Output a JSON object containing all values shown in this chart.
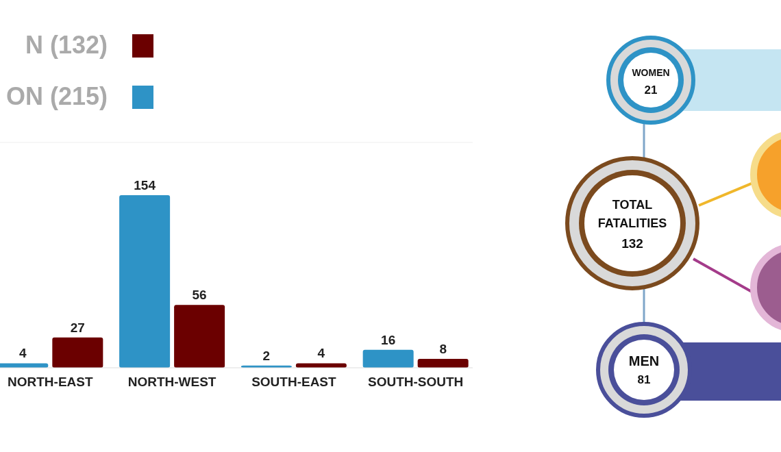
{
  "chart_data": [
    {
      "type": "bar",
      "categories": [
        "NORTH-EAST",
        "NORTH-WEST",
        "SOUTH-EAST",
        "SOUTH-SOUTH"
      ],
      "series": [
        {
          "name": "ON (215)",
          "color": "#2e93c6",
          "values": [
            4,
            154,
            2,
            16
          ]
        },
        {
          "name": "N (132)",
          "color": "#6b0000",
          "values": [
            27,
            56,
            4,
            8
          ]
        }
      ],
      "data_labels": true,
      "legend": "top left"
    },
    {
      "type": "other",
      "annotations": [
        "WOMEN",
        "21",
        "TOTAL",
        "FATALITIES",
        "132",
        "MEN",
        "81"
      ]
    }
  ]
}
